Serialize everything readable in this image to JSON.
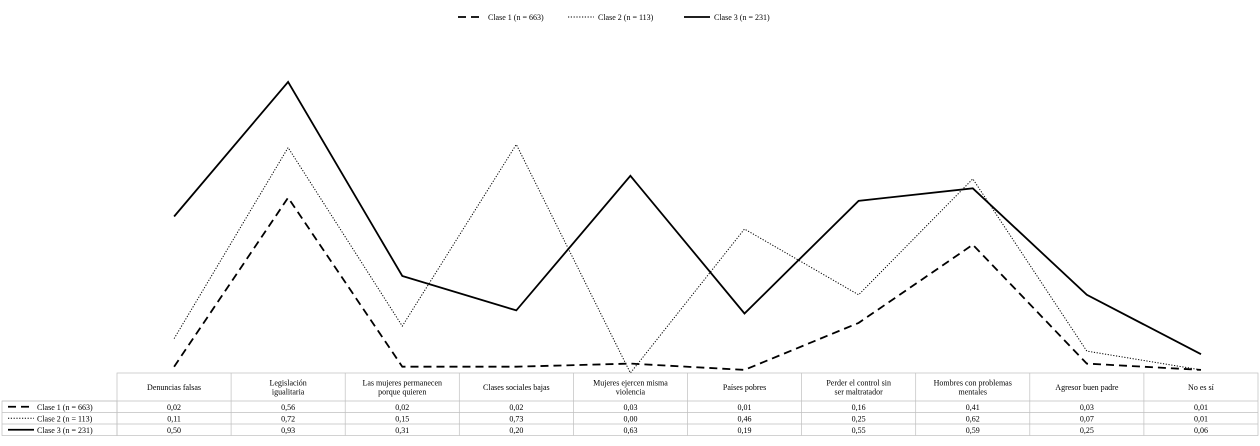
{
  "chart_data": {
    "type": "line",
    "categories": [
      "Denuncias falsas",
      "Legislación igualitaria",
      "Las mujeres permanecen porque quieren",
      "Clases sociales bajas",
      "Mujeres ejercen misma violencia",
      "Países pobres",
      "Perder el control sin ser maltratador",
      "Hombres con problemas mentales",
      "Agresor buen padre",
      "No es sí"
    ],
    "series": [
      {
        "name": "Clase 1 (n = 663)",
        "style": "dashed",
        "values": [
          0.02,
          0.56,
          0.02,
          0.02,
          0.03,
          0.01,
          0.16,
          0.41,
          0.03,
          0.01
        ],
        "labels": [
          "0,02",
          "0,56",
          "0,02",
          "0,02",
          "0,03",
          "0,01",
          "0,16",
          "0,41",
          "0,03",
          "0,01"
        ]
      },
      {
        "name": "Clase 2 (n = 113)",
        "style": "dotted",
        "values": [
          0.11,
          0.72,
          0.15,
          0.73,
          0.0,
          0.46,
          0.25,
          0.62,
          0.07,
          0.01
        ],
        "labels": [
          "0,11",
          "0,72",
          "0,15",
          "0,73",
          "0,00",
          "0,46",
          "0,25",
          "0,62",
          "0,07",
          "0,01"
        ]
      },
      {
        "name": "Clase 3 (n = 231)",
        "style": "solid",
        "values": [
          0.5,
          0.93,
          0.31,
          0.2,
          0.63,
          0.19,
          0.55,
          0.59,
          0.25,
          0.06
        ],
        "labels": [
          "0,50",
          "0,93",
          "0,31",
          "0,20",
          "0,63",
          "0,19",
          "0,55",
          "0,59",
          "0,25",
          "0,06"
        ]
      }
    ],
    "ylim": [
      0,
      1
    ],
    "legend_position": "top-center",
    "data_table": true,
    "grid": false,
    "line_color": "#000000"
  }
}
